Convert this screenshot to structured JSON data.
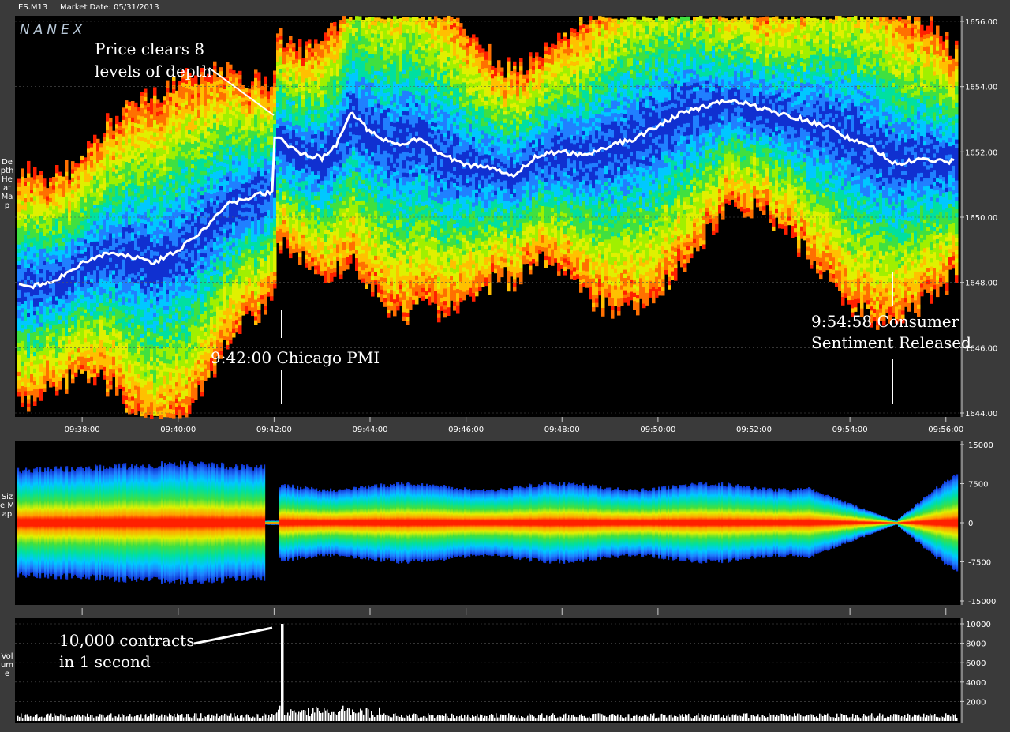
{
  "header": {
    "symbol": "ES.M13",
    "market_date": "Market Date: 05/31/2013"
  },
  "brand": "NANEX",
  "side_labels": {
    "depth": "Depth Heat Map",
    "size": "Size Map",
    "volume": "Volume"
  },
  "annotations": {
    "clears_1": "Price clears 8",
    "clears_2": "levels of depth",
    "pmi": "9:42:00 Chicago PMI",
    "consumer_1": "9:54:58 Consumer",
    "consumer_2": "Sentiment Released",
    "vol_1": "10,000 contracts",
    "vol_2": "in 1 second"
  },
  "colors": {
    "frame": "#3a3a3a",
    "plot_bg": "#000000",
    "heat": [
      "#1030d0",
      "#2080ff",
      "#00c8ff",
      "#00e0a0",
      "#40e040",
      "#a0f000",
      "#e0f000",
      "#ffc000",
      "#ff7000",
      "#ff2000"
    ]
  },
  "chart_data": [
    {
      "type": "heatmap",
      "title": "Depth Heat Map",
      "x_ticks": [
        "09:38:00",
        "09:40:00",
        "09:42:00",
        "09:44:00",
        "09:46:00",
        "09:48:00",
        "09:50:00",
        "09:52:00",
        "09:54:00",
        "09:56:00"
      ],
      "y_ticks": [
        "1656.00",
        "1654.00",
        "1652.00",
        "1650.00",
        "1648.00",
        "1646.00",
        "1644.00"
      ],
      "ylim": [
        1644,
        1656
      ],
      "price_series": {
        "time_min": [
          37.0,
          37.5,
          38.0,
          38.5,
          39.0,
          39.5,
          40.0,
          40.5,
          41.0,
          41.5,
          41.97,
          42.0,
          42.5,
          43.0,
          43.3,
          43.6,
          44.0,
          44.5,
          45.0,
          45.5,
          46.0,
          46.5,
          47.0,
          47.5,
          48.0,
          48.5,
          49.0,
          49.5,
          50.0,
          50.5,
          51.0,
          51.5,
          52.0,
          52.5,
          53.0,
          53.5,
          54.0,
          54.5,
          54.97,
          55.5,
          56.0
        ],
        "price": [
          1647.9,
          1648.1,
          1648.6,
          1648.9,
          1648.8,
          1648.6,
          1649.0,
          1649.6,
          1650.4,
          1650.6,
          1650.8,
          1652.5,
          1652.0,
          1651.8,
          1652.2,
          1653.2,
          1652.6,
          1652.2,
          1652.4,
          1651.9,
          1651.6,
          1651.5,
          1651.3,
          1651.9,
          1652.0,
          1651.9,
          1652.2,
          1652.4,
          1652.8,
          1653.2,
          1653.4,
          1653.6,
          1653.4,
          1653.2,
          1653.0,
          1652.8,
          1652.4,
          1652.1,
          1651.6,
          1651.8,
          1651.7
        ]
      },
      "events": [
        {
          "time": "9:42:00",
          "label": "Chicago PMI"
        },
        {
          "time": "9:54:58",
          "label": "Consumer Sentiment Released"
        }
      ]
    },
    {
      "type": "area",
      "title": "Size Map",
      "y_ticks": [
        "15000",
        "7500",
        "0",
        "-7500",
        "-15000"
      ],
      "ylim": [
        -15000,
        15000
      ]
    },
    {
      "type": "bar",
      "title": "Volume",
      "y_ticks": [
        "10000",
        "8000",
        "6000",
        "4000",
        "2000"
      ],
      "ylim": [
        0,
        10000
      ],
      "peak": {
        "time": "9:42:00",
        "value": 10000
      }
    }
  ]
}
